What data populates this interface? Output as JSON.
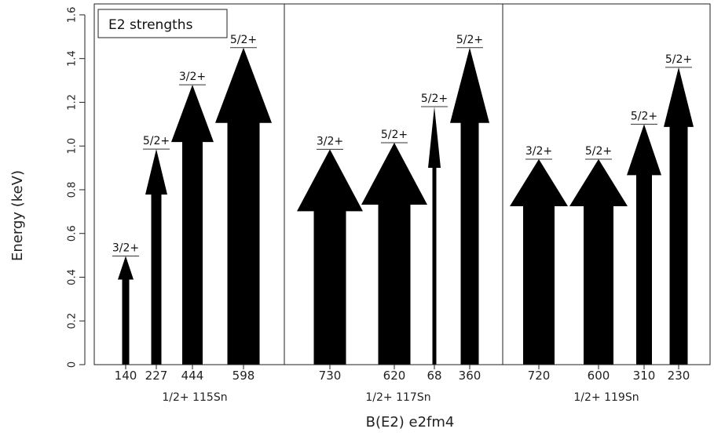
{
  "chart_data": {
    "type": "bar",
    "title": "E2 strengths",
    "xlabel": "B(E2) e2fm4",
    "ylabel": "Energy (keV)",
    "ylim": [
      0,
      1.65
    ],
    "yticks": [
      "0",
      "0.2",
      "0.4",
      "0.6",
      "0.8",
      "1.0",
      "1.2",
      "1.4",
      "1.6"
    ],
    "grid": false,
    "groups": [
      {
        "label": "1/2+ 115Sn",
        "transitions": [
          {
            "bE2": "140",
            "state": "3/2+",
            "energy": 0.497
          },
          {
            "bE2": "227",
            "state": "5/2+",
            "energy": 0.986
          },
          {
            "bE2": "444",
            "state": "3/2+",
            "energy": 1.28
          },
          {
            "bE2": "598",
            "state": "5/2+",
            "energy": 1.45
          }
        ]
      },
      {
        "label": "1/2+ 117Sn",
        "transitions": [
          {
            "bE2": "730",
            "state": "3/2+",
            "energy": 0.985
          },
          {
            "bE2": "620",
            "state": "5/2+",
            "energy": 1.015
          },
          {
            "bE2": "68",
            "state": "5/2+",
            "energy": 1.18
          },
          {
            "bE2": "360",
            "state": "5/2+",
            "energy": 1.45
          }
        ]
      },
      {
        "label": "1/2+ 119Sn",
        "transitions": [
          {
            "bE2": "720",
            "state": "3/2+",
            "energy": 0.94
          },
          {
            "bE2": "600",
            "state": "5/2+",
            "energy": 0.94
          },
          {
            "bE2": "310",
            "state": "5/2+",
            "energy": 1.1
          },
          {
            "bE2": "230",
            "state": "5/2+",
            "energy": 1.36
          }
        ]
      }
    ]
  }
}
